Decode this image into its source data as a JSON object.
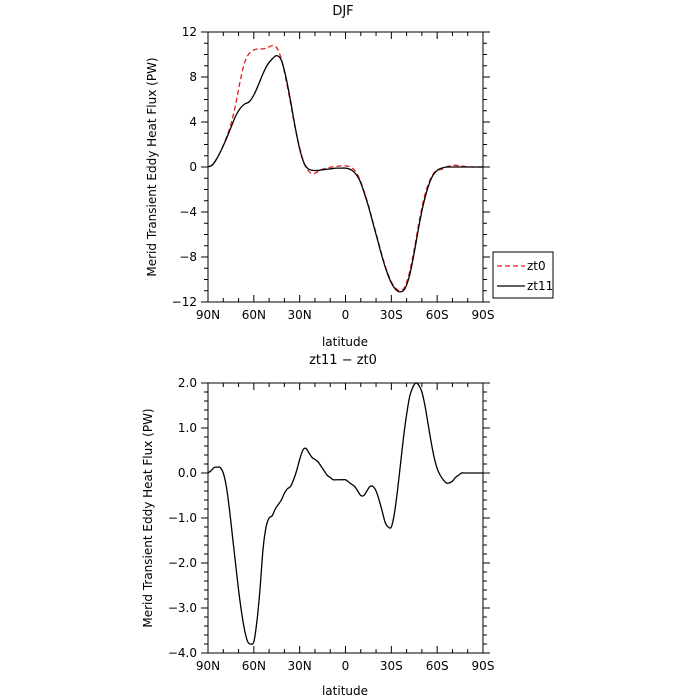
{
  "chart_data": [
    {
      "type": "line",
      "title": "DJF",
      "xlabel": "latitude",
      "ylabel": "Merid Transient Eddy Heat Flux (PW)",
      "xlim": [
        90,
        -90
      ],
      "ylim": [
        -12,
        12
      ],
      "x_ticks": [
        90,
        60,
        30,
        0,
        -30,
        -60,
        -90
      ],
      "x_tick_labels": [
        "90N",
        "60N",
        "30N",
        "0",
        "30S",
        "60S",
        "90S"
      ],
      "y_ticks": [
        12,
        8,
        4,
        0,
        -4,
        -8,
        -12
      ],
      "y_tick_labels": [
        "12",
        "8",
        "4",
        "0",
        "−4",
        "−8",
        "−12"
      ],
      "legend_position": "outside-right",
      "series": [
        {
          "name": "zt0",
          "color": "#e11d1d",
          "dash": "dashed",
          "x": [
            90,
            87,
            84,
            81,
            78,
            75,
            72,
            69,
            66,
            63,
            60,
            57,
            54,
            51,
            48,
            45,
            42,
            39,
            36,
            33,
            30,
            27,
            24,
            21,
            18,
            15,
            12,
            9,
            6,
            3,
            0,
            -3,
            -6,
            -9,
            -12,
            -15,
            -18,
            -21,
            -24,
            -27,
            -30,
            -33,
            -36,
            -39,
            -42,
            -45,
            -48,
            -51,
            -54,
            -57,
            -60,
            -63,
            -66,
            -69,
            -72,
            -75,
            -78,
            -81,
            -84,
            -87,
            -90
          ],
          "y": [
            0.0,
            0.2,
            0.8,
            1.6,
            2.6,
            3.8,
            5.5,
            7.6,
            9.3,
            10.1,
            10.4,
            10.5,
            10.5,
            10.6,
            10.8,
            10.6,
            9.6,
            7.8,
            5.7,
            3.5,
            1.7,
            0.3,
            -0.4,
            -0.6,
            -0.4,
            -0.2,
            -0.1,
            0.0,
            0.05,
            0.1,
            0.1,
            0.0,
            -0.3,
            -1.0,
            -2.1,
            -3.4,
            -4.9,
            -6.4,
            -7.9,
            -9.2,
            -10.2,
            -10.8,
            -11.0,
            -10.6,
            -9.3,
            -7.3,
            -5.0,
            -3.0,
            -1.6,
            -0.7,
            -0.3,
            -0.2,
            0.0,
            0.1,
            0.15,
            0.1,
            0.05,
            0.0,
            0.0,
            0.0,
            0.0
          ]
        },
        {
          "name": "zt11",
          "color": "#000000",
          "dash": "solid",
          "x": [
            90,
            87,
            84,
            81,
            78,
            75,
            72,
            69,
            66,
            63,
            60,
            57,
            54,
            51,
            48,
            45,
            42,
            39,
            36,
            33,
            30,
            27,
            24,
            21,
            18,
            15,
            12,
            9,
            6,
            3,
            0,
            -3,
            -6,
            -9,
            -12,
            -15,
            -18,
            -21,
            -24,
            -27,
            -30,
            -33,
            -36,
            -39,
            -42,
            -45,
            -48,
            -51,
            -54,
            -57,
            -60,
            -63,
            -66,
            -69,
            -72,
            -75,
            -78,
            -81,
            -84,
            -87,
            -90
          ],
          "y": [
            0.0,
            0.2,
            0.8,
            1.6,
            2.5,
            3.5,
            4.5,
            5.2,
            5.6,
            5.8,
            6.4,
            7.3,
            8.3,
            9.1,
            9.6,
            9.9,
            9.5,
            8.0,
            5.9,
            3.6,
            1.6,
            0.3,
            -0.2,
            -0.3,
            -0.3,
            -0.25,
            -0.2,
            -0.15,
            -0.1,
            -0.1,
            -0.1,
            -0.2,
            -0.5,
            -1.1,
            -2.2,
            -3.5,
            -5.0,
            -6.5,
            -8.0,
            -9.3,
            -10.3,
            -10.9,
            -11.1,
            -10.8,
            -9.6,
            -7.6,
            -5.3,
            -3.3,
            -1.8,
            -0.8,
            -0.3,
            -0.1,
            0.0,
            0.0,
            0.0,
            0.0,
            0.0,
            0.0,
            0.0,
            0.0,
            0.0
          ]
        }
      ]
    },
    {
      "type": "line",
      "title": "zt11 − zt0",
      "xlabel": "latitude",
      "ylabel": "Merid Transient Eddy Heat Flux (PW)",
      "xlim": [
        90,
        -90
      ],
      "ylim": [
        -4,
        2
      ],
      "x_ticks": [
        90,
        60,
        30,
        0,
        -30,
        -60,
        -90
      ],
      "x_tick_labels": [
        "90N",
        "60N",
        "30N",
        "0",
        "30S",
        "60S",
        "90S"
      ],
      "y_ticks": [
        2,
        1,
        0,
        -1,
        -2,
        -3,
        -4
      ],
      "y_tick_labels": [
        "2.0",
        "1.0",
        "0.0",
        "−1.0",
        "−2.0",
        "−3.0",
        "−4.0"
      ],
      "series": [
        {
          "color": "#000000",
          "dash": "solid",
          "x": [
            90,
            88,
            86,
            84,
            82,
            80,
            78,
            76,
            74,
            72,
            70,
            68,
            66,
            64,
            62,
            60,
            58,
            56,
            54,
            52,
            50,
            48,
            46,
            44,
            42,
            40,
            38,
            36,
            34,
            32,
            30,
            28,
            26,
            24,
            22,
            20,
            18,
            16,
            14,
            12,
            10,
            8,
            6,
            4,
            2,
            0,
            -2,
            -4,
            -6,
            -8,
            -10,
            -12,
            -14,
            -16,
            -18,
            -20,
            -22,
            -24,
            -26,
            -28,
            -30,
            -32,
            -34,
            -36,
            -38,
            -40,
            -42,
            -44,
            -46,
            -48,
            -50,
            -52,
            -54,
            -56,
            -58,
            -60,
            -62,
            -64,
            -66,
            -68,
            -70,
            -72,
            -74,
            -76,
            -78,
            -80,
            -82,
            -84,
            -86,
            -88,
            -90
          ],
          "y": [
            0.0,
            0.05,
            0.12,
            0.13,
            0.12,
            0.0,
            -0.3,
            -0.8,
            -1.4,
            -2.0,
            -2.6,
            -3.1,
            -3.5,
            -3.75,
            -3.8,
            -3.75,
            -3.3,
            -2.6,
            -1.7,
            -1.2,
            -1.0,
            -0.95,
            -0.8,
            -0.7,
            -0.6,
            -0.45,
            -0.35,
            -0.3,
            -0.15,
            0.05,
            0.3,
            0.5,
            0.55,
            0.45,
            0.35,
            0.3,
            0.25,
            0.15,
            0.05,
            -0.05,
            -0.1,
            -0.15,
            -0.15,
            -0.15,
            -0.15,
            -0.15,
            -0.2,
            -0.25,
            -0.3,
            -0.4,
            -0.5,
            -0.5,
            -0.4,
            -0.3,
            -0.3,
            -0.4,
            -0.6,
            -0.85,
            -1.1,
            -1.2,
            -1.2,
            -0.9,
            -0.4,
            0.2,
            0.8,
            1.3,
            1.7,
            1.9,
            2.0,
            1.95,
            1.8,
            1.5,
            1.1,
            0.7,
            0.35,
            0.1,
            -0.05,
            -0.15,
            -0.22,
            -0.22,
            -0.18,
            -0.1,
            -0.05,
            0.0,
            0.0,
            0.0,
            0.0,
            0.0,
            0.0,
            0.0,
            0.0
          ]
        }
      ]
    }
  ]
}
